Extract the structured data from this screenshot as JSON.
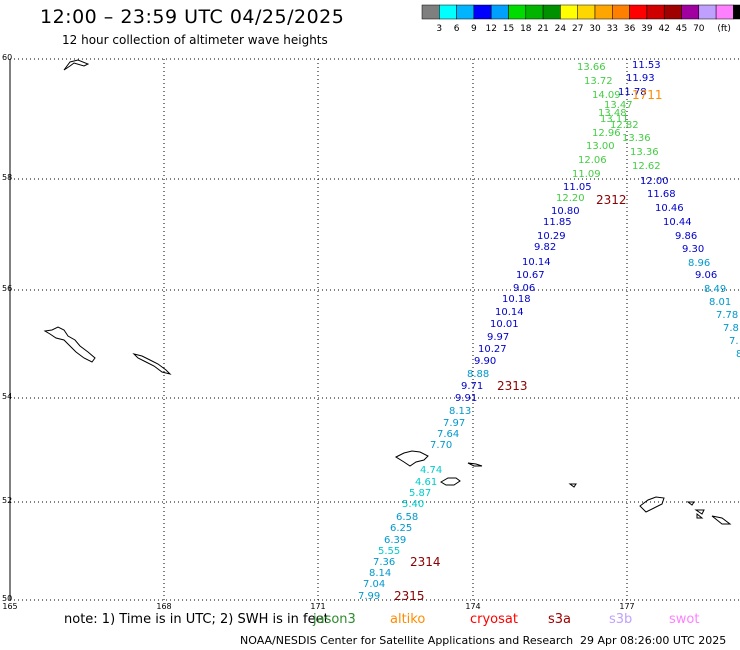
{
  "title": "12:00 – 23:59 UTC 04/25/2025",
  "subtitle": "12 hour collection of altimeter wave heights",
  "legend": {
    "colors": [
      "#7f7f7f",
      "#00ffff",
      "#00b4ff",
      "#0000ff",
      "#00a0ff",
      "#00dc00",
      "#00b400",
      "#009000",
      "#ffff00",
      "#ffd700",
      "#ffa500",
      "#ff7f00",
      "#ff0000",
      "#d00000",
      "#a00000",
      "#a000a0",
      "#c0a0ff",
      "#ff80ff",
      "#000000"
    ],
    "labels": [
      "3",
      "6",
      "9",
      "12",
      "15",
      "18",
      "21",
      "24",
      "27",
      "30",
      "33",
      "36",
      "39",
      "42",
      "45",
      "70",
      "(ft)"
    ]
  },
  "axes": {
    "lat_labels": [
      "60",
      "58",
      "56",
      "54",
      "52",
      "50"
    ],
    "lon_labels": [
      "165",
      "168",
      "171",
      "174",
      "177"
    ]
  },
  "note": "note: 1) Time is in UTC; 2) SWH is in feet",
  "satellites": [
    {
      "name": "jason3",
      "color": "#2e8b2e"
    },
    {
      "name": "altiko",
      "color": "#ff8c00"
    },
    {
      "name": "cryosat",
      "color": "#ff0000"
    },
    {
      "name": "s3a",
      "color": "#a00000"
    },
    {
      "name": "s3b",
      "color": "#c0a0ff"
    },
    {
      "name": "swot",
      "color": "#ff80ff"
    }
  ],
  "credit": "NOAA/NESDIS Center for Satellite Applications and Research",
  "timestamp": "29 Apr 08:26:00 UTC 2025",
  "time_labels": [
    {
      "text": "2312",
      "color": "#8b0000"
    },
    {
      "text": "2313",
      "color": "#8b0000"
    },
    {
      "text": "2314",
      "color": "#8b0000"
    },
    {
      "text": "2315",
      "color": "#8b0000"
    },
    {
      "text": "1711",
      "color": "#ff8c00"
    }
  ],
  "tracks": {
    "green_top": {
      "color": "#44cc44",
      "values": [
        "13.66",
        "13.72",
        "14.09",
        "13.47",
        "13.48",
        "13.11",
        "12.82",
        "12.96",
        "13.36",
        "13.00",
        "13.36",
        "12.06",
        "12.62",
        "11.09",
        "12.20"
      ]
    },
    "blue_top": {
      "color": "#0000cc",
      "values": [
        "11.53",
        "11.93",
        "11.78"
      ]
    },
    "track_2312_right": {
      "values": [
        {
          "v": "12.00",
          "c": "#0000cc"
        },
        {
          "v": "11.68",
          "c": "#0000cc"
        },
        {
          "v": "10.46",
          "c": "#0000cc"
        },
        {
          "v": "10.44",
          "c": "#0000cc"
        },
        {
          "v": "9.86",
          "c": "#0000cc"
        },
        {
          "v": "9.30",
          "c": "#0000cc"
        },
        {
          "v": "8.96",
          "c": "#0099cc"
        },
        {
          "v": "9.06",
          "c": "#0000cc"
        },
        {
          "v": "8.49",
          "c": "#0099cc"
        },
        {
          "v": "8.01",
          "c": "#0099cc"
        },
        {
          "v": "7.78",
          "c": "#0099cc"
        },
        {
          "v": "7.8",
          "c": "#0099cc"
        },
        {
          "v": "7.",
          "c": "#0099cc"
        },
        {
          "v": "8",
          "c": "#0099cc"
        }
      ]
    },
    "track_2313_left": {
      "values": [
        {
          "v": "11.05",
          "c": "#0000cc"
        },
        {
          "v": "10.80",
          "c": "#0000cc"
        },
        {
          "v": "11.85",
          "c": "#0000cc"
        },
        {
          "v": "10.29",
          "c": "#0000cc"
        },
        {
          "v": "9.82",
          "c": "#0000cc"
        },
        {
          "v": "10.14",
          "c": "#0000cc"
        },
        {
          "v": "10.67",
          "c": "#0000cc"
        },
        {
          "v": "9.06",
          "c": "#0000cc"
        },
        {
          "v": "10.18",
          "c": "#0000cc"
        },
        {
          "v": "10.14",
          "c": "#0000cc"
        },
        {
          "v": "10.01",
          "c": "#0000cc"
        },
        {
          "v": "9.97",
          "c": "#0000cc"
        },
        {
          "v": "10.27",
          "c": "#0000cc"
        },
        {
          "v": "9.90",
          "c": "#0000cc"
        },
        {
          "v": "8.88",
          "c": "#0099cc"
        },
        {
          "v": "9.71",
          "c": "#0000cc"
        },
        {
          "v": "9.91",
          "c": "#0000cc"
        },
        {
          "v": "8.13",
          "c": "#0099cc"
        },
        {
          "v": "7.97",
          "c": "#0099cc"
        },
        {
          "v": "7.64",
          "c": "#0099cc"
        },
        {
          "v": "7.70",
          "c": "#0099cc"
        },
        {
          "v": "4.74",
          "c": "#00cccc"
        },
        {
          "v": "4.61",
          "c": "#00cccc"
        },
        {
          "v": "5.87",
          "c": "#00cccc"
        },
        {
          "v": "5.40",
          "c": "#00cccc"
        },
        {
          "v": "6.58",
          "c": "#0099cc"
        },
        {
          "v": "6.25",
          "c": "#0099cc"
        },
        {
          "v": "6.39",
          "c": "#0099cc"
        },
        {
          "v": "5.55",
          "c": "#00cccc"
        },
        {
          "v": "7.36",
          "c": "#0099cc"
        },
        {
          "v": "8.14",
          "c": "#0099cc"
        },
        {
          "v": "7.04",
          "c": "#0099cc"
        },
        {
          "v": "7.99",
          "c": "#0099cc"
        }
      ]
    }
  }
}
